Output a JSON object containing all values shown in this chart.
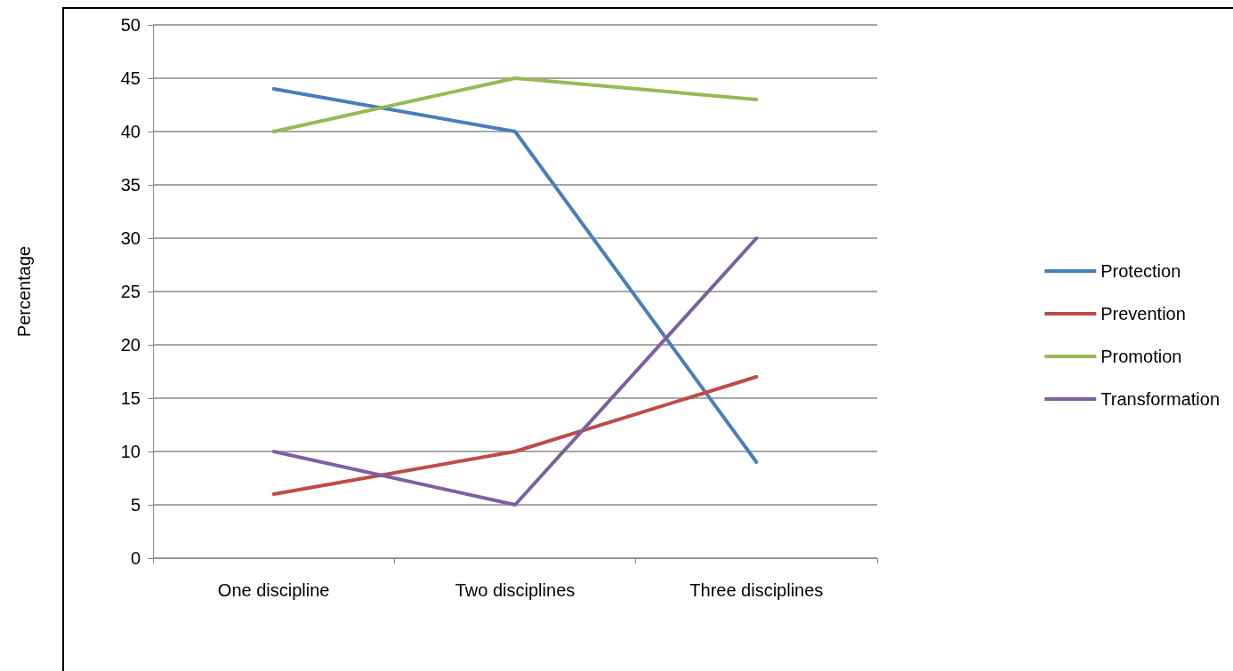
{
  "chart_data": {
    "type": "line",
    "ylabel": "Percentage",
    "categories": [
      "One discipline",
      "Two disciplines",
      "Three disciplines"
    ],
    "series": [
      {
        "name": "Protection",
        "color": "#4a7ebb",
        "values": [
          44,
          40,
          9
        ]
      },
      {
        "name": "Prevention",
        "color": "#be4b48",
        "values": [
          6,
          10,
          17
        ]
      },
      {
        "name": "Promotion",
        "color": "#98b954",
        "values": [
          40,
          45,
          43
        ]
      },
      {
        "name": "Transformation",
        "color": "#7d60a0",
        "values": [
          10,
          5,
          30
        ]
      }
    ],
    "ylim": [
      0,
      50
    ],
    "yticks": [
      0,
      5,
      10,
      15,
      20,
      25,
      30,
      35,
      40,
      45,
      50
    ],
    "grid": "y",
    "legend": "right",
    "marker": "none",
    "line_style": "solid"
  }
}
